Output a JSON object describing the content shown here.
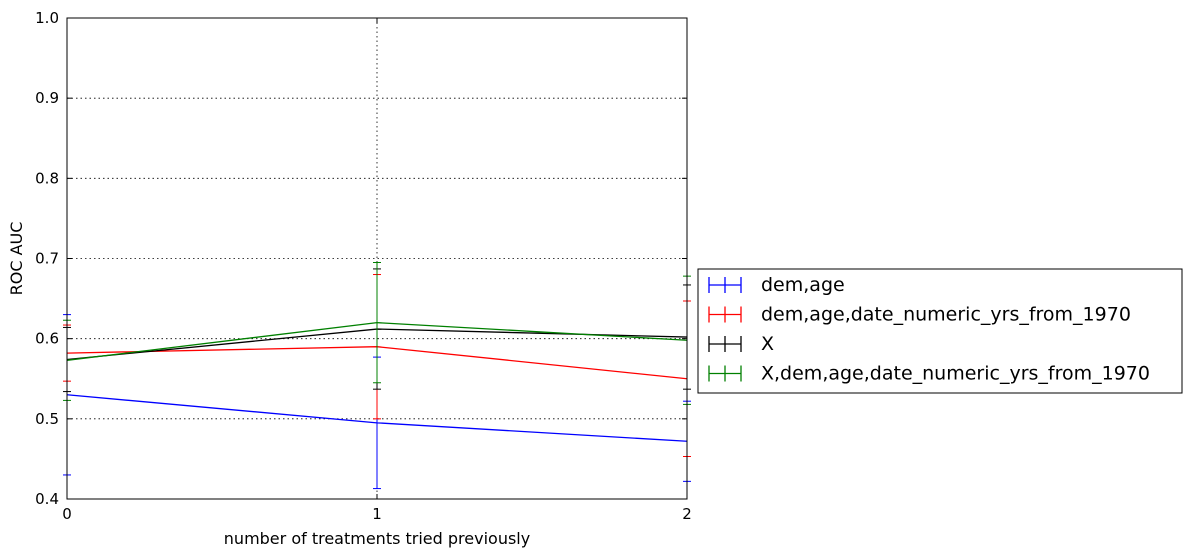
{
  "chart_data": {
    "type": "line",
    "xlabel": "number of treatments tried previously",
    "ylabel": "ROC AUC",
    "x": [
      0,
      1,
      2
    ],
    "xlim": [
      0,
      2
    ],
    "ylim": [
      0.4,
      1.0
    ],
    "xticks": [
      "0",
      "1",
      "2"
    ],
    "yticks": [
      "0.4",
      "0.5",
      "0.6",
      "0.7",
      "0.8",
      "0.9",
      "1.0"
    ],
    "grid": true,
    "legend_position": "outside right",
    "series": [
      {
        "name": "dem,age",
        "color": "#0000ff",
        "values": [
          0.53,
          0.495,
          0.472
        ],
        "errors": [
          0.1,
          0.082,
          0.05
        ]
      },
      {
        "name": "dem,age,date_numeric_yrs_from_1970",
        "color": "#ff0000",
        "values": [
          0.582,
          0.59,
          0.55
        ],
        "errors": [
          0.035,
          0.09,
          0.097
        ]
      },
      {
        "name": "X",
        "color": "#000000",
        "values": [
          0.574,
          0.612,
          0.602
        ],
        "errors": [
          0.04,
          0.075,
          0.065
        ]
      },
      {
        "name": "X,dem,age,date_numeric_yrs_from_1970",
        "color": "#008000",
        "values": [
          0.573,
          0.62,
          0.598
        ],
        "errors": [
          0.05,
          0.075,
          0.08
        ]
      }
    ]
  }
}
